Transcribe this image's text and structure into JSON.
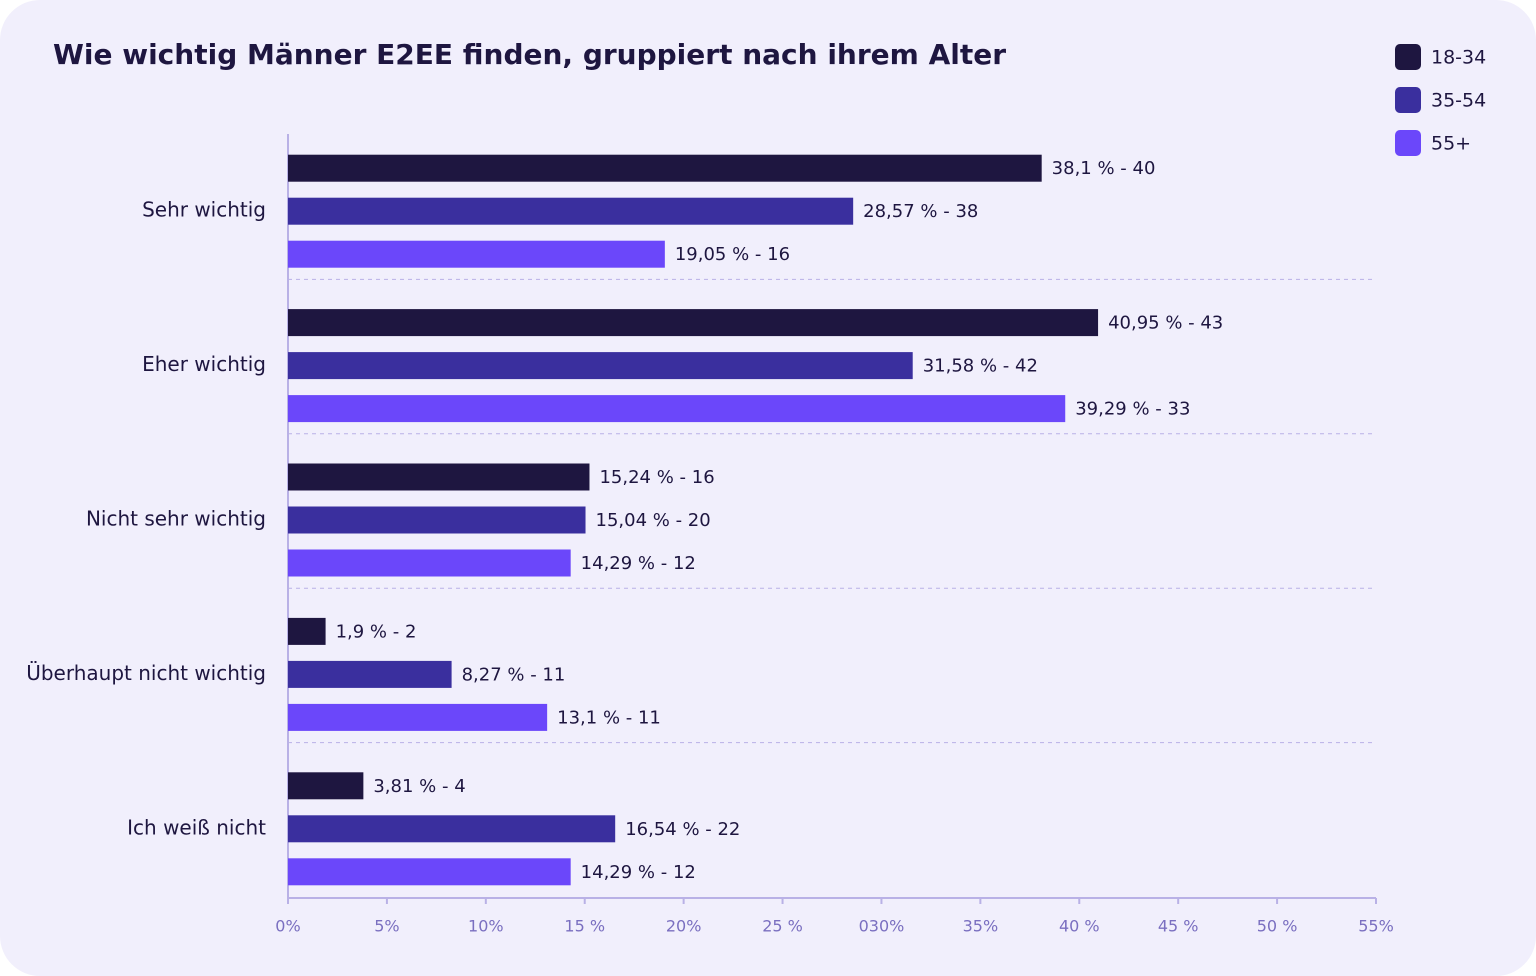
{
  "chart_data": {
    "type": "bar",
    "orientation": "horizontal",
    "title": "Wie wichtig Männer E2EE finden, gruppiert nach ihrem Alter",
    "categories": [
      "Sehr wichtig",
      "Eher wichtig",
      "Nicht sehr wichtig",
      "Überhaupt nicht wichtig",
      "Ich weiß nicht"
    ],
    "series": [
      {
        "name": "18-34",
        "color": "#1e1640",
        "values": [
          38.1,
          40.95,
          15.24,
          1.9,
          3.81
        ],
        "value_labels": [
          "38,1 % - 40",
          "40,95 % - 43",
          "15,24 % - 16",
          "1,9 % - 2",
          "3,81 % - 4"
        ]
      },
      {
        "name": "35-54",
        "color": "#3a2f9e",
        "values": [
          28.57,
          31.58,
          15.04,
          8.27,
          16.54
        ],
        "value_labels": [
          "28,57 % - 38",
          "31,58 % - 42",
          "15,04 % - 20",
          "8,27 % - 11",
          "16,54 % - 22"
        ]
      },
      {
        "name": "55+",
        "color": "#6b47fa",
        "values": [
          19.05,
          39.29,
          14.29,
          13.1,
          14.29
        ],
        "value_labels": [
          "19,05 % - 16",
          "39,29 % - 33",
          "14,29 % - 12",
          "13,1 % - 11",
          "14,29 % - 12"
        ]
      }
    ],
    "xlim": [
      0,
      55
    ],
    "xticks": [
      {
        "value": 0,
        "label": "0%"
      },
      {
        "value": 5,
        "label": "5%"
      },
      {
        "value": 10,
        "label": "10%"
      },
      {
        "value": 15,
        "label": "15 %"
      },
      {
        "value": 20,
        "label": "20%"
      },
      {
        "value": 25,
        "label": "25 %"
      },
      {
        "value": 30,
        "label": "030%"
      },
      {
        "value": 35,
        "label": "35%"
      },
      {
        "value": 40,
        "label": "40 %"
      },
      {
        "value": 45,
        "label": "45 %"
      },
      {
        "value": 50,
        "label": "50 %"
      },
      {
        "value": 55,
        "label": "55%"
      }
    ],
    "legend": "top-right"
  }
}
